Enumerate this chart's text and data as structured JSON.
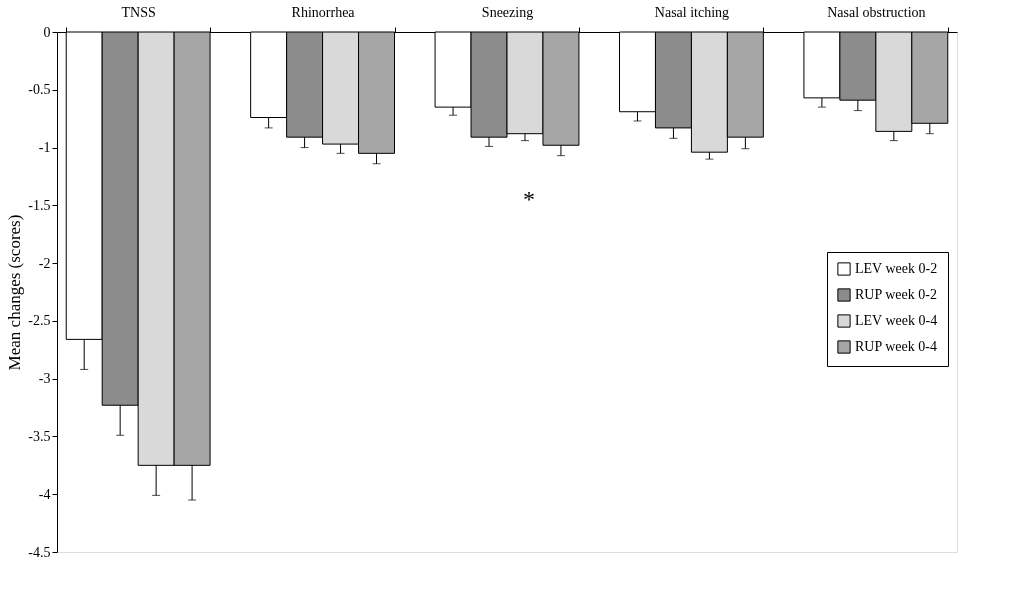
{
  "chart_data": {
    "type": "bar",
    "ylabel": "Mean changes (scores)",
    "categories": [
      "TNSS",
      "Rhinorrhea",
      "Sneezing",
      "Nasal itching",
      "Nasal obstruction"
    ],
    "series": [
      {
        "name": "LEV week 0-2",
        "color": "#ffffff",
        "values": [
          -2.66,
          -0.74,
          -0.65,
          -0.69,
          -0.57
        ],
        "errors": [
          [
            -2.92,
            -2.66
          ],
          [
            -0.83,
            -0.74
          ],
          [
            -0.72,
            -0.65
          ],
          [
            -0.77,
            -0.69
          ],
          [
            -0.65,
            -0.57
          ]
        ]
      },
      {
        "name": "RUP week 0-2",
        "color": "#8c8c8c",
        "values": [
          -3.23,
          -0.91,
          -0.91,
          -0.83,
          -0.59
        ],
        "errors": [
          [
            -3.49,
            -3.23
          ],
          [
            -1.0,
            -0.91
          ],
          [
            -0.99,
            -0.91
          ],
          [
            -0.92,
            -0.83
          ],
          [
            -0.68,
            -0.59
          ]
        ]
      },
      {
        "name": "LEV week 0-4",
        "color": "#d9d9d9",
        "values": [
          -3.75,
          -0.97,
          -0.88,
          -1.04,
          -0.86
        ],
        "errors": [
          [
            -4.01,
            -3.75
          ],
          [
            -1.05,
            -0.97
          ],
          [
            -0.94,
            -0.88
          ],
          [
            -1.1,
            -1.04
          ],
          [
            -0.94,
            -0.86
          ]
        ]
      },
      {
        "name": "RUP week 0-4",
        "color": "#a6a6a6",
        "values": [
          -3.75,
          -1.05,
          -0.98,
          -0.91,
          -0.79
        ],
        "errors": [
          [
            -4.05,
            -3.75
          ],
          [
            -1.14,
            -1.05
          ],
          [
            -1.07,
            -0.98
          ],
          [
            -1.01,
            -0.91
          ],
          [
            -0.88,
            -0.79
          ]
        ]
      }
    ],
    "ylim": [
      -4.5,
      0
    ],
    "yticks": [
      0,
      -0.5,
      -1,
      -1.5,
      -2,
      -2.5,
      -3,
      -3.5,
      -4,
      -4.5
    ],
    "grid": false,
    "legend": "right",
    "annotations": [
      "*"
    ]
  }
}
